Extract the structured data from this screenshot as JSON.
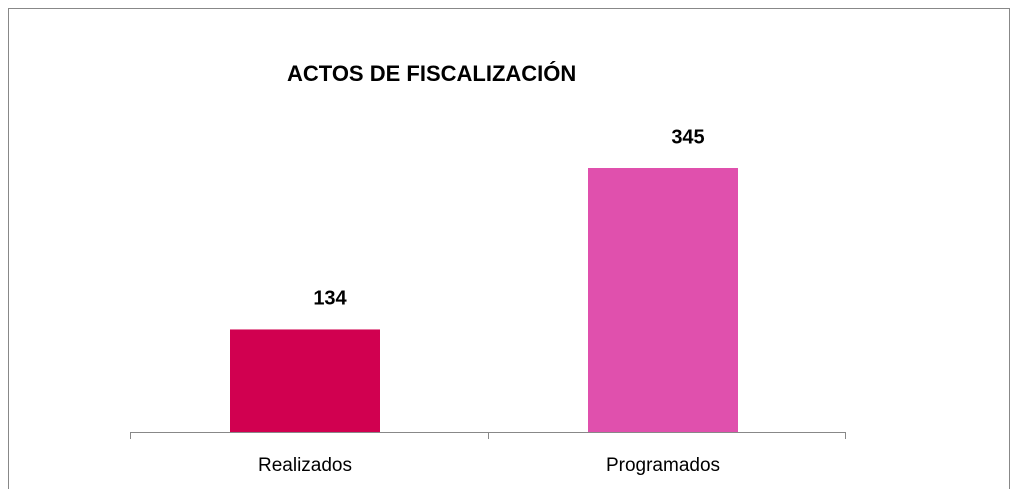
{
  "chart_data": {
    "type": "bar",
    "title": "ACTOS DE FISCALIZACIÓN",
    "categories": [
      "Realizados",
      "Programados"
    ],
    "values": [
      134,
      345
    ],
    "colors": [
      "#d10050",
      "#e050ad"
    ]
  }
}
